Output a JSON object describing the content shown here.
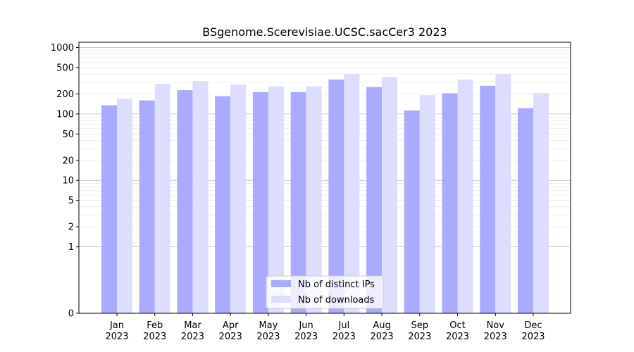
{
  "chart_data": {
    "type": "bar",
    "title": "BSgenome.Scerevisiae.UCSC.sacCer3 2023",
    "xlabel": "",
    "ylabel": "",
    "yscale": "symlog",
    "ylim": [
      0,
      1200
    ],
    "yticks": [
      {
        "value": 0,
        "label": "0"
      },
      {
        "value": 1,
        "label": "1"
      },
      {
        "value": 2,
        "label": "2"
      },
      {
        "value": 5,
        "label": "5"
      },
      {
        "value": 10,
        "label": "10"
      },
      {
        "value": 20,
        "label": "20"
      },
      {
        "value": 50,
        "label": "50"
      },
      {
        "value": 100,
        "label": "100"
      },
      {
        "value": 200,
        "label": "200"
      },
      {
        "value": 500,
        "label": "500"
      },
      {
        "value": 1000,
        "label": "1000"
      }
    ],
    "categories": [
      {
        "month": "Jan",
        "year": "2023"
      },
      {
        "month": "Feb",
        "year": "2023"
      },
      {
        "month": "Mar",
        "year": "2023"
      },
      {
        "month": "Apr",
        "year": "2023"
      },
      {
        "month": "May",
        "year": "2023"
      },
      {
        "month": "Jun",
        "year": "2023"
      },
      {
        "month": "Jul",
        "year": "2023"
      },
      {
        "month": "Aug",
        "year": "2023"
      },
      {
        "month": "Sep",
        "year": "2023"
      },
      {
        "month": "Oct",
        "year": "2023"
      },
      {
        "month": "Nov",
        "year": "2023"
      },
      {
        "month": "Dec",
        "year": "2023"
      }
    ],
    "series": [
      {
        "name": "Nb of distinct IPs",
        "color": "#aaaaff",
        "values": [
          135,
          160,
          228,
          185,
          213,
          213,
          330,
          255,
          113,
          205,
          265,
          122
        ]
      },
      {
        "name": "Nb of downloads",
        "color": "#ddddff",
        "values": [
          170,
          283,
          312,
          278,
          260,
          260,
          400,
          360,
          192,
          330,
          400,
          207
        ]
      }
    ],
    "grid": "horizontal",
    "legend": "bottom-center"
  }
}
